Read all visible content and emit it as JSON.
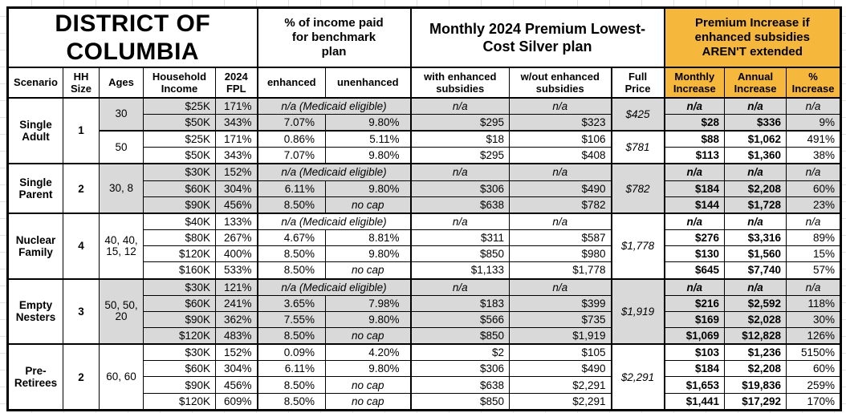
{
  "chart_data": {
    "type": "table",
    "title": "DISTRICT OF COLUMBIA",
    "column_groups": [
      "% of income paid for benchmark plan",
      "Monthly 2024 Premium Lowest-Cost Silver plan",
      "Premium Increase if enhanced subsidies AREN'T extended"
    ],
    "columns": {
      "scenario": "Scenario",
      "hh": "HH Size",
      "ages": "Ages",
      "income": "Household Income",
      "fpl": "2024 FPL",
      "enhanced": "enhanced",
      "unenhanced": "unenhanced",
      "with_sub": "with enhanced subsidies",
      "wout_sub": "w/out enhanced subsidies",
      "full_price": "Full Price",
      "monthly": "Monthly Increase",
      "annual": "Annual Increase",
      "pct": "% Increase"
    },
    "labels": {
      "na": "n/a",
      "medicaid_note": "n/a (Medicaid eligible)",
      "no_cap": "no cap"
    },
    "colors": {
      "header_orange": "#F6B73D",
      "row_shade": "#D9D9D9",
      "grid_line": "#E2E2E2",
      "border": "#000000"
    },
    "groups": [
      {
        "scenario": "Single Adult",
        "hh_size": "1",
        "subgroups": [
          {
            "ages": "30",
            "full_price": "$425",
            "shaded": true,
            "rows": [
              {
                "income": "$25K",
                "fpl": "171%",
                "medicaid": true
              },
              {
                "income": "$50K",
                "fpl": "343%",
                "enhanced": "7.07%",
                "unenhanced": "9.80%",
                "with_sub": "$295",
                "wout_sub": "$323",
                "monthly": "$28",
                "annual": "$336",
                "pct": "9%"
              }
            ]
          },
          {
            "ages": "50",
            "full_price": "$781",
            "shaded": false,
            "rows": [
              {
                "income": "$25K",
                "fpl": "171%",
                "enhanced": "0.86%",
                "unenhanced": "5.11%",
                "with_sub": "$18",
                "wout_sub": "$106",
                "monthly": "$88",
                "annual": "$1,062",
                "pct": "491%"
              },
              {
                "income": "$50K",
                "fpl": "343%",
                "enhanced": "7.07%",
                "unenhanced": "9.80%",
                "with_sub": "$295",
                "wout_sub": "$408",
                "monthly": "$113",
                "annual": "$1,360",
                "pct": "38%"
              }
            ]
          }
        ]
      },
      {
        "scenario": "Single Parent",
        "hh_size": "2",
        "subgroups": [
          {
            "ages": "30, 8",
            "full_price": "$782",
            "shaded": true,
            "rows": [
              {
                "income": "$30K",
                "fpl": "152%",
                "medicaid": true
              },
              {
                "income": "$60K",
                "fpl": "304%",
                "enhanced": "6.11%",
                "unenhanced": "9.80%",
                "with_sub": "$306",
                "wout_sub": "$490",
                "monthly": "$184",
                "annual": "$2,208",
                "pct": "60%"
              },
              {
                "income": "$90K",
                "fpl": "456%",
                "enhanced": "8.50%",
                "unenhanced": "no cap",
                "with_sub": "$638",
                "wout_sub": "$782",
                "monthly": "$144",
                "annual": "$1,728",
                "pct": "23%"
              }
            ]
          }
        ]
      },
      {
        "scenario": "Nuclear Family",
        "hh_size": "4",
        "subgroups": [
          {
            "ages": "40, 40, 15, 12",
            "full_price": "$1,778",
            "shaded": false,
            "rows": [
              {
                "income": "$40K",
                "fpl": "133%",
                "medicaid": true
              },
              {
                "income": "$80K",
                "fpl": "267%",
                "enhanced": "4.67%",
                "unenhanced": "8.81%",
                "with_sub": "$311",
                "wout_sub": "$587",
                "monthly": "$276",
                "annual": "$3,316",
                "pct": "89%"
              },
              {
                "income": "$120K",
                "fpl": "400%",
                "enhanced": "8.50%",
                "unenhanced": "9.80%",
                "with_sub": "$850",
                "wout_sub": "$980",
                "monthly": "$130",
                "annual": "$1,560",
                "pct": "15%"
              },
              {
                "income": "$160K",
                "fpl": "533%",
                "enhanced": "8.50%",
                "unenhanced": "no cap",
                "with_sub": "$1,133",
                "wout_sub": "$1,778",
                "monthly": "$645",
                "annual": "$7,740",
                "pct": "57%"
              }
            ]
          }
        ]
      },
      {
        "scenario": "Empty Nesters",
        "hh_size": "3",
        "subgroups": [
          {
            "ages": "50, 50, 20",
            "full_price": "$1,919",
            "shaded": true,
            "rows": [
              {
                "income": "$30K",
                "fpl": "121%",
                "medicaid": true
              },
              {
                "income": "$60K",
                "fpl": "241%",
                "enhanced": "3.65%",
                "unenhanced": "7.98%",
                "with_sub": "$183",
                "wout_sub": "$399",
                "monthly": "$216",
                "annual": "$2,592",
                "pct": "118%"
              },
              {
                "income": "$90K",
                "fpl": "362%",
                "enhanced": "7.55%",
                "unenhanced": "9.80%",
                "with_sub": "$566",
                "wout_sub": "$735",
                "monthly": "$169",
                "annual": "$2,028",
                "pct": "30%"
              },
              {
                "income": "$120K",
                "fpl": "483%",
                "enhanced": "8.50%",
                "unenhanced": "no cap",
                "with_sub": "$850",
                "wout_sub": "$1,919",
                "monthly": "$1,069",
                "annual": "$12,828",
                "pct": "126%"
              }
            ]
          }
        ]
      },
      {
        "scenario": "Pre-Retirees",
        "hh_size": "2",
        "subgroups": [
          {
            "ages": "60, 60",
            "full_price": "$2,291",
            "shaded": false,
            "rows": [
              {
                "income": "$30K",
                "fpl": "152%",
                "enhanced": "0.09%",
                "unenhanced": "4.20%",
                "with_sub": "$2",
                "wout_sub": "$105",
                "monthly": "$103",
                "annual": "$1,236",
                "pct": "5150%"
              },
              {
                "income": "$60K",
                "fpl": "304%",
                "enhanced": "6.11%",
                "unenhanced": "9.80%",
                "with_sub": "$306",
                "wout_sub": "$490",
                "monthly": "$184",
                "annual": "$2,208",
                "pct": "60%"
              },
              {
                "income": "$90K",
                "fpl": "456%",
                "enhanced": "8.50%",
                "unenhanced": "no cap",
                "with_sub": "$638",
                "wout_sub": "$2,291",
                "monthly": "$1,653",
                "annual": "$19,836",
                "pct": "259%"
              },
              {
                "income": "$120K",
                "fpl": "609%",
                "enhanced": "8.50%",
                "unenhanced": "no cap",
                "with_sub": "$850",
                "wout_sub": "$2,291",
                "monthly": "$1,441",
                "annual": "$17,292",
                "pct": "170%"
              }
            ]
          }
        ]
      }
    ]
  }
}
